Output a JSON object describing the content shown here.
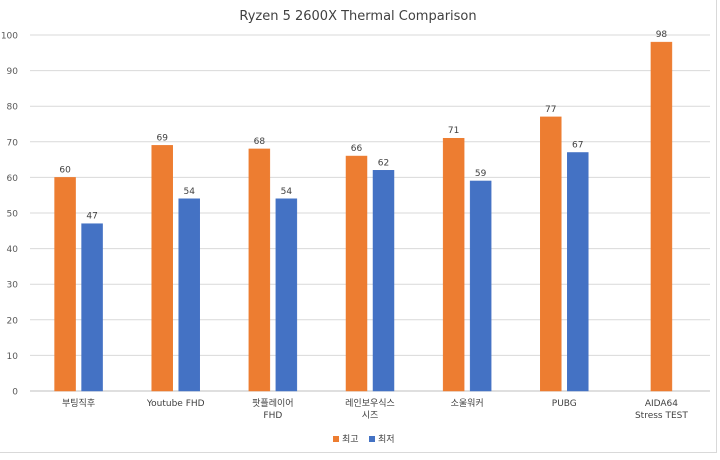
{
  "chart_data": {
    "type": "bar",
    "title": "Ryzen 5 2600X Thermal Comparison",
    "categories": [
      [
        "부팅직후"
      ],
      [
        "Youtube FHD"
      ],
      [
        "팟플레이어",
        "FHD"
      ],
      [
        "레인보우식스",
        "시즈"
      ],
      [
        "소울워커"
      ],
      [
        "PUBG"
      ],
      [
        "AIDA64",
        "Stress TEST"
      ]
    ],
    "series": [
      {
        "name": "최고",
        "color": "#ED7D31",
        "values": [
          60,
          69,
          68,
          66,
          71,
          77,
          98
        ]
      },
      {
        "name": "최저",
        "color": "#4472C4",
        "values": [
          47,
          54,
          54,
          62,
          59,
          67,
          null
        ]
      }
    ],
    "ylim": [
      0,
      100
    ],
    "yticks": [
      0,
      10,
      20,
      30,
      40,
      50,
      60,
      70,
      80,
      90,
      100
    ],
    "grid": true,
    "legend_position": "bottom",
    "data_labels": true
  }
}
